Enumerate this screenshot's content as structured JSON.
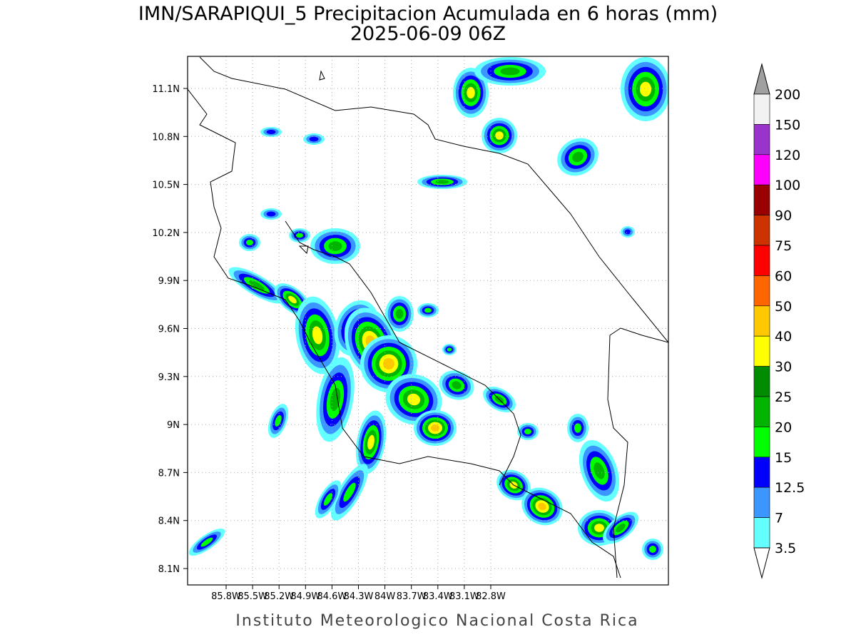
{
  "header": {
    "title": "IMN/SARAPIQUI_5 Precipitacion Acumulada en 6 horas (mm)",
    "subtitle": "2025-06-09 06Z"
  },
  "map": {
    "lat_ticks": [
      "11.1N",
      "10.8N",
      "10.5N",
      "10.2N",
      "9.9N",
      "9.6N",
      "9.3N",
      "9N",
      "8.7N",
      "8.4N",
      "8.1N"
    ],
    "lon_ticks": [
      "85.8W",
      "85.5W",
      "85.2W",
      "84.9W",
      "84.6W",
      "84.3W",
      "84W",
      "83.7W",
      "83.4W",
      "83.1W",
      "82.8W"
    ]
  },
  "colorbar": {
    "labels": [
      "200",
      "150",
      "120",
      "100",
      "90",
      "75",
      "60",
      "50",
      "40",
      "30",
      "25",
      "20",
      "15",
      "12.5",
      "7",
      "3.5"
    ],
    "colors": [
      "#f2f2f2",
      "#9933cc",
      "#ff00ff",
      "#990000",
      "#cc3300",
      "#ff0000",
      "#ff6600",
      "#ffc800",
      "#ffff00",
      "#008c00",
      "#00b400",
      "#00ff00",
      "#0000ff",
      "#3c96ff",
      "#64ffff"
    ],
    "over_color": "#a0a0a0",
    "under_color": "#ffffff"
  },
  "footer": "Instituto Meteorologico Nacional Costa Rica"
}
